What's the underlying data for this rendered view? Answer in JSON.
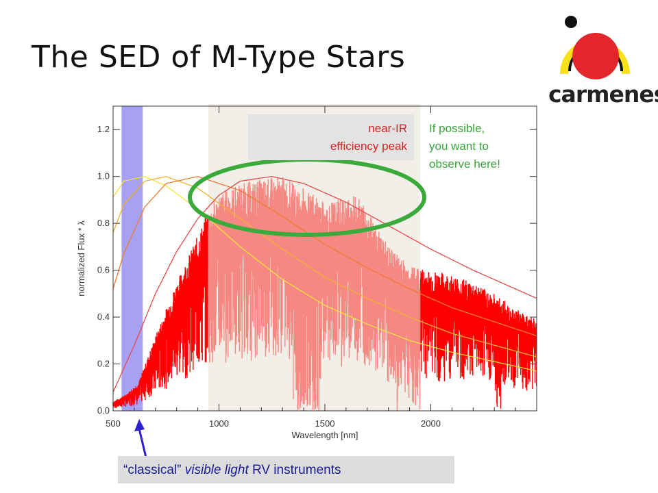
{
  "slide": {
    "title": "The SED of M-Type Stars",
    "logo_text": "carmenes",
    "annotation_nir": [
      "near-IR",
      "efficiency peak"
    ],
    "annotation_observe": [
      "If possible,",
      "you want to",
      "observe here!"
    ],
    "bottom_label": {
      "part1": "“classical” ",
      "part2": "visible light",
      "part3": " RV instruments"
    }
  },
  "colors": {
    "visible_band": "#a7a0f3",
    "nir_band": "#f1efe7",
    "spectrum": "#ff0000",
    "nir_highlight": "#f57c78",
    "ellipse": "#3aaa3a",
    "arrow": "#2a20d0",
    "logo_red": "#e3262b",
    "logo_yellow": "#f7e21a"
  },
  "chart_data": {
    "type": "line",
    "xlabel": "Wavelength [nm]",
    "ylabel": "normalized Flux * λ",
    "xlim": [
      500,
      2500
    ],
    "ylim": [
      0,
      1.3
    ],
    "x_ticks": [
      500,
      1000,
      1500,
      2000
    ],
    "y_ticks": [
      "0.0",
      "0.2",
      "0.4",
      "0.6",
      "0.8",
      "1.0",
      "1.2"
    ],
    "bands": [
      {
        "x_range": [
          540,
          640
        ],
        "color": "#a7a0f3"
      },
      {
        "x_range": [
          950,
          1950
        ],
        "color": "#f1efe7"
      }
    ],
    "series": [
      {
        "color": "#f5e53a",
        "peak_x": 650,
        "points": [
          [
            500,
            0.91
          ],
          [
            550,
            0.98
          ],
          [
            650,
            1.0
          ],
          [
            750,
            0.96
          ],
          [
            900,
            0.86
          ],
          [
            1100,
            0.7
          ],
          [
            1300,
            0.56
          ],
          [
            1500,
            0.45
          ],
          [
            1700,
            0.37
          ],
          [
            1900,
            0.3
          ],
          [
            2100,
            0.25
          ],
          [
            2300,
            0.21
          ],
          [
            2500,
            0.17
          ]
        ]
      },
      {
        "color": "#f2b030",
        "peak_x": 750,
        "points": [
          [
            500,
            0.76
          ],
          [
            550,
            0.88
          ],
          [
            650,
            0.98
          ],
          [
            750,
            1.0
          ],
          [
            900,
            0.95
          ],
          [
            1100,
            0.82
          ],
          [
            1300,
            0.69
          ],
          [
            1500,
            0.57
          ],
          [
            1700,
            0.48
          ],
          [
            1900,
            0.4
          ],
          [
            2100,
            0.33
          ],
          [
            2300,
            0.28
          ],
          [
            2500,
            0.23
          ]
        ]
      },
      {
        "color": "#ef7a30",
        "peak_x": 900,
        "points": [
          [
            500,
            0.52
          ],
          [
            550,
            0.67
          ],
          [
            650,
            0.87
          ],
          [
            750,
            0.97
          ],
          [
            900,
            1.0
          ],
          [
            1100,
            0.94
          ],
          [
            1300,
            0.83
          ],
          [
            1500,
            0.71
          ],
          [
            1700,
            0.61
          ],
          [
            1900,
            0.52
          ],
          [
            2100,
            0.44
          ],
          [
            2300,
            0.38
          ],
          [
            2500,
            0.32
          ]
        ]
      },
      {
        "color": "#e84a4a",
        "peak_x": 1250,
        "points": [
          [
            500,
            0.08
          ],
          [
            600,
            0.28
          ],
          [
            700,
            0.5
          ],
          [
            800,
            0.68
          ],
          [
            900,
            0.82
          ],
          [
            1000,
            0.92
          ],
          [
            1100,
            0.98
          ],
          [
            1250,
            1.0
          ],
          [
            1400,
            0.97
          ],
          [
            1600,
            0.89
          ],
          [
            1800,
            0.79
          ],
          [
            2000,
            0.69
          ],
          [
            2200,
            0.6
          ],
          [
            2400,
            0.52
          ],
          [
            2500,
            0.48
          ]
        ]
      }
    ],
    "spectrum_envelope": [
      [
        500,
        0.04
      ],
      [
        560,
        0.07
      ],
      [
        620,
        0.12
      ],
      [
        700,
        0.32
      ],
      [
        800,
        0.55
      ],
      [
        900,
        0.75
      ],
      [
        950,
        0.86
      ],
      [
        1000,
        0.93
      ],
      [
        1100,
        0.97
      ],
      [
        1200,
        0.99
      ],
      [
        1300,
        1.0
      ],
      [
        1400,
        0.95
      ],
      [
        1500,
        0.89
      ],
      [
        1600,
        0.91
      ],
      [
        1650,
        0.92
      ],
      [
        1700,
        0.87
      ],
      [
        1800,
        0.7
      ],
      [
        1900,
        0.62
      ],
      [
        2000,
        0.6
      ],
      [
        2100,
        0.58
      ],
      [
        2200,
        0.55
      ],
      [
        2300,
        0.5
      ],
      [
        2400,
        0.44
      ],
      [
        2500,
        0.39
      ]
    ],
    "spectrum_absorption_dips": [
      [
        1350,
        1480,
        0.18
      ],
      [
        1790,
        1960,
        0.35
      ],
      [
        2300,
        2340,
        0.2
      ]
    ]
  }
}
